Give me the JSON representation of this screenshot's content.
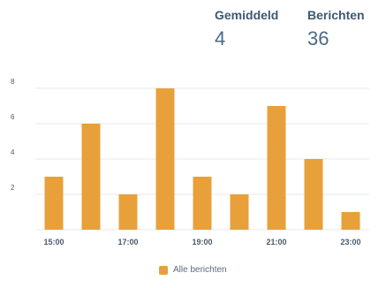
{
  "stats": {
    "average_label": "Gemiddeld",
    "average_value": "4",
    "messages_label": "Berichten",
    "messages_value": "36"
  },
  "colors": {
    "bar": "#e8a03b",
    "grid": "#e6eaee",
    "axis_text": "#4a5a6a"
  },
  "chart_data": {
    "type": "bar",
    "categories": [
      "15:00",
      "16:00",
      "17:00",
      "18:00",
      "19:00",
      "20:00",
      "21:00",
      "22:00",
      "23:00"
    ],
    "x_tick_labels": [
      "15:00",
      "",
      "17:00",
      "",
      "19:00",
      "",
      "21:00",
      "",
      "23:00"
    ],
    "series": [
      {
        "name": "Alle berichten",
        "values": [
          3,
          6,
          2,
          8,
          3,
          2,
          7,
          4,
          1
        ]
      }
    ],
    "yticks": [
      "2",
      "4",
      "6",
      "8"
    ],
    "ylim": [
      0,
      8
    ],
    "grid": true,
    "legend_position": "bottom"
  }
}
